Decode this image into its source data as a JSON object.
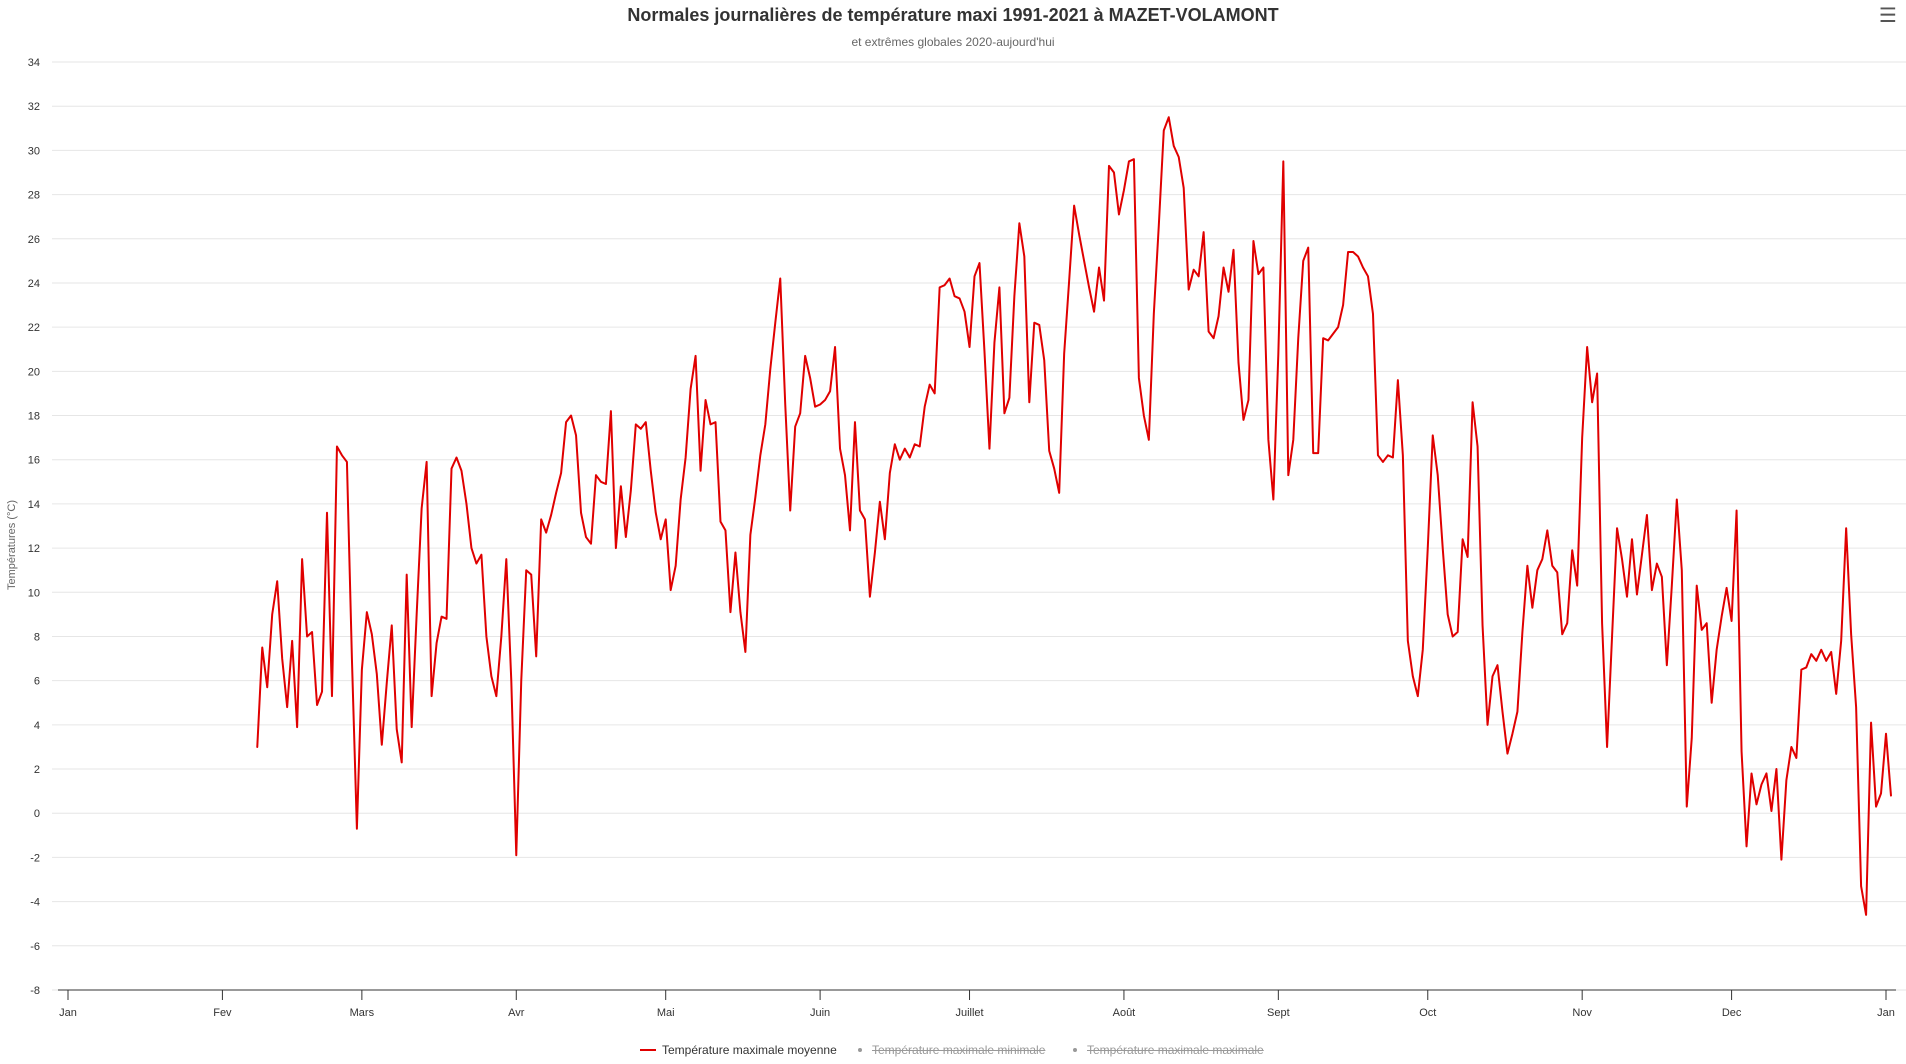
{
  "header": {
    "title": "Normales journalières de température maxi 1991-2021 à MAZET-VOLAMONT",
    "subtitle": "et extrêmes globales 2020-aujourd'hui"
  },
  "menu": {
    "icon": "hamburger-menu-icon"
  },
  "colors": {
    "series_max_avg": "#e00000",
    "grid": "#e6e6e6",
    "axis": "#333333",
    "hidden_legend": "#999999"
  },
  "chart_data": {
    "type": "line",
    "ylabel": "Températures (°C)",
    "xlabel": "",
    "ylim": [
      -8,
      34
    ],
    "yticks": [
      -8,
      -6,
      -4,
      -2,
      0,
      2,
      4,
      6,
      8,
      10,
      12,
      14,
      16,
      18,
      20,
      22,
      24,
      26,
      28,
      30,
      32,
      34
    ],
    "xlim": [
      1,
      366
    ],
    "xticks": [
      {
        "day": 1,
        "label": "Jan"
      },
      {
        "day": 32,
        "label": "Fev"
      },
      {
        "day": 60,
        "label": "Mars"
      },
      {
        "day": 91,
        "label": "Avr"
      },
      {
        "day": 121,
        "label": "Mai"
      },
      {
        "day": 152,
        "label": "Juin"
      },
      {
        "day": 182,
        "label": "Juillet"
      },
      {
        "day": 213,
        "label": "Août"
      },
      {
        "day": 244,
        "label": "Sept"
      },
      {
        "day": 274,
        "label": "Oct"
      },
      {
        "day": 305,
        "label": "Nov"
      },
      {
        "day": 335,
        "label": "Dec"
      },
      {
        "day": 366,
        "label": "Jan"
      }
    ],
    "grid": true,
    "legend_position": "bottom-center",
    "series": [
      {
        "name": "Température maximale moyenne",
        "visible": true,
        "x_start_day": 39,
        "values": [
          3.0,
          7.5,
          5.7,
          9.0,
          10.5,
          7.0,
          4.8,
          7.8,
          3.9,
          11.5,
          8.0,
          8.2,
          4.9,
          5.5,
          13.6,
          5.3,
          16.6,
          16.2,
          15.9,
          7.0,
          -0.7,
          6.5,
          9.1,
          8.1,
          6.3,
          3.1,
          5.9,
          8.5,
          3.8,
          2.3,
          10.8,
          3.9,
          9.0,
          13.8,
          15.9,
          5.3,
          7.7,
          8.9,
          8.8,
          15.6,
          16.1,
          15.5,
          14.0,
          12.0,
          11.3,
          11.7,
          8.0,
          6.2,
          5.3,
          8.0,
          11.5,
          6.0,
          -1.9,
          6.0,
          11.0,
          10.8,
          7.1,
          13.3,
          12.7,
          13.5,
          14.5,
          15.4,
          17.7,
          18.0,
          17.1,
          13.6,
          12.5,
          12.2,
          15.3,
          15.0,
          14.9,
          18.2,
          12.0,
          14.8,
          12.5,
          14.6,
          17.6,
          17.4,
          17.7,
          15.5,
          13.6,
          12.4,
          13.3,
          10.1,
          11.2,
          14.2,
          16.1,
          19.2,
          20.7,
          15.5,
          18.7,
          17.6,
          17.7,
          13.2,
          12.8,
          9.1,
          11.8,
          9.1,
          7.3,
          12.6,
          14.3,
          16.2,
          17.6,
          20.1,
          22.2,
          24.2,
          18.5,
          13.7,
          17.5,
          18.1,
          20.7,
          19.7,
          18.4,
          18.5,
          18.7,
          19.1,
          21.1,
          16.5,
          15.3,
          12.8,
          17.7,
          13.7,
          13.3,
          9.8,
          11.8,
          14.1,
          12.4,
          15.4,
          16.7,
          16.0,
          16.5,
          16.1,
          16.7,
          16.6,
          18.4,
          19.4,
          19.0,
          23.8,
          23.9,
          24.2,
          23.4,
          23.3,
          22.7,
          21.1,
          24.3,
          24.9,
          20.9,
          16.5,
          21.3,
          23.8,
          18.1,
          18.8,
          23.4,
          26.7,
          25.2,
          18.6,
          22.2,
          22.1,
          20.5,
          16.4,
          15.6,
          14.5,
          20.8,
          24.1,
          27.5,
          26.2,
          25.0,
          23.8,
          22.7,
          24.7,
          23.2,
          29.3,
          29.0,
          27.1,
          28.2,
          29.5,
          29.6,
          19.7,
          18.0,
          16.9,
          22.6,
          26.6,
          30.9,
          31.5,
          30.2,
          29.7,
          28.3,
          23.7,
          24.6,
          24.3,
          26.3,
          21.8,
          21.5,
          22.5,
          24.7,
          23.6,
          25.5,
          20.4,
          17.8,
          18.7,
          25.9,
          24.4,
          24.7,
          16.9,
          14.2,
          20.8,
          29.5,
          15.3,
          16.9,
          21.5,
          25.0,
          25.6,
          16.3,
          16.3,
          21.5,
          21.4,
          21.7,
          22.0,
          23.0,
          25.4,
          25.4,
          25.2,
          24.7,
          24.3,
          22.6,
          16.2,
          15.9,
          16.2,
          16.1,
          19.6,
          16.2,
          7.8,
          6.2,
          5.3,
          7.4,
          12.0,
          17.1,
          15.3,
          12.0,
          9.0,
          8.0,
          8.2,
          12.4,
          11.6,
          18.6,
          16.6,
          8.5,
          4.0,
          6.2,
          6.7,
          4.6,
          2.7,
          3.6,
          4.6,
          8.2,
          11.2,
          9.3,
          11.0,
          11.5,
          12.8,
          11.2,
          10.9,
          8.1,
          8.6,
          11.9,
          10.3,
          17.0,
          21.1,
          18.6,
          19.9,
          8.6,
          3.0,
          8.0,
          12.9,
          11.5,
          9.8,
          12.4,
          9.9,
          11.7,
          13.5,
          10.1,
          11.3,
          10.7,
          6.7,
          10.3,
          14.2,
          11.0,
          0.3,
          3.4,
          10.3,
          8.3,
          8.6,
          5.0,
          7.4,
          8.9,
          10.2,
          8.7,
          13.7,
          2.8,
          -1.5,
          1.8,
          0.4,
          1.3,
          1.8,
          0.1,
          2.0,
          -2.1,
          1.5,
          3.0,
          2.5,
          6.5,
          6.6,
          7.2,
          6.9,
          7.4,
          6.9,
          7.3,
          5.4,
          7.8,
          12.9,
          8.1,
          4.8,
          -3.3,
          -4.6,
          4.1,
          0.3,
          0.9,
          3.6,
          0.8
        ]
      },
      {
        "name": "Température maximale minimale",
        "visible": false,
        "values": []
      },
      {
        "name": "Température maximale maximale",
        "visible": false,
        "values": []
      }
    ]
  }
}
